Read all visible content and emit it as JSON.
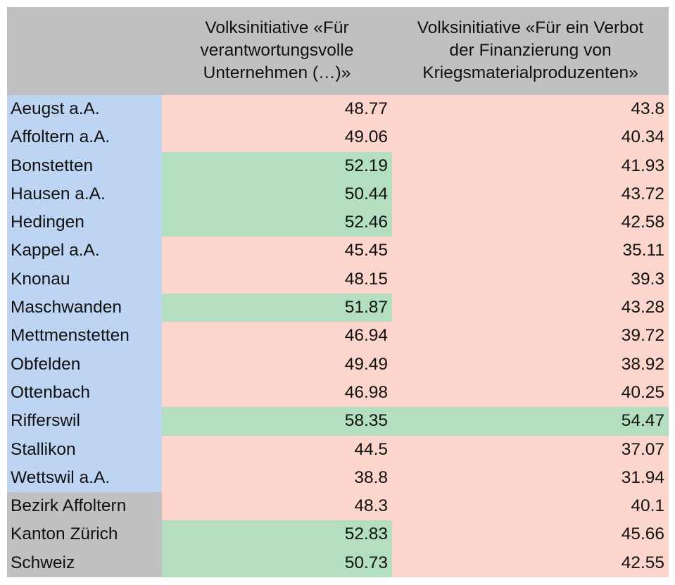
{
  "table": {
    "header": [
      [
        "Volksinitiative «Für",
        "verantwortungsvolle",
        "Unternehmen (…)»"
      ],
      [
        "Volksinitiative «Für ein Verbot",
        "der Finanzierung von",
        "Kriegsmaterialproduzenten»"
      ]
    ],
    "municipalities": [
      [
        "Aeugst a.A.",
        48.77,
        43.8
      ],
      [
        "Affoltern a.A.",
        49.06,
        40.34
      ],
      [
        "Bonstetten",
        52.19,
        41.93
      ],
      [
        "Hausen a.A.",
        50.44,
        43.72
      ],
      [
        "Hedingen",
        52.46,
        42.58
      ],
      [
        "Kappel a.A.",
        45.45,
        35.11
      ],
      [
        "Knonau",
        48.15,
        39.3
      ],
      [
        "Maschwanden",
        51.87,
        43.28
      ],
      [
        "Mettmenstetten",
        46.94,
        39.72
      ],
      [
        "Obfelden",
        49.49,
        38.92
      ],
      [
        "Ottenbach",
        46.98,
        40.25
      ],
      [
        "Rifferswil",
        58.35,
        54.47
      ],
      [
        "Stallikon",
        44.5,
        37.07
      ],
      [
        "Wettswil a.A.",
        38.8,
        31.94
      ]
    ],
    "totals": [
      [
        "Bezirk Affoltern",
        48.3,
        40.1
      ],
      [
        "Kanton Zürich",
        52.83,
        45.66
      ],
      [
        "Schweiz",
        50.73,
        42.55
      ]
    ]
  }
}
